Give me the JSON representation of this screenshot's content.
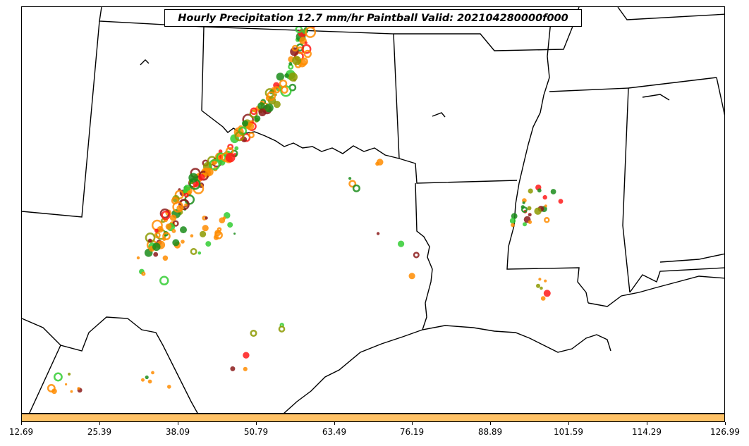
{
  "title": "Hourly Precipitation 12.7 mm/hr Paintball Valid: 202104280000f000",
  "colorbar": {
    "color": "#ffc266",
    "ticks": [
      "12.69",
      "25.39",
      "38.09",
      "50.79",
      "63.49",
      "76.19",
      "88.89",
      "101.59",
      "114.29",
      "126.99"
    ]
  },
  "colors": {
    "orange": "#ff8c00",
    "red": "#ff1a1a",
    "green": "#1a8c1a",
    "olive": "#8c9900",
    "lime": "#33cc33",
    "darkred": "#8b1a1a"
  }
}
